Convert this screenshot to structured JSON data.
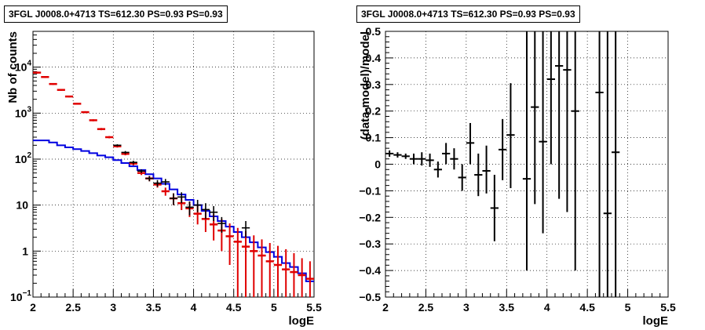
{
  "chart_data": [
    {
      "type": "line",
      "title": "3FGL J0008.0+4713 TS=612.30 PS=0.93 PS=0.93",
      "xlabel": "logE",
      "ylabel": "Nb of counts",
      "xlim": [
        2,
        5.5
      ],
      "ylim": [
        0.1,
        60000
      ],
      "yscale": "log",
      "grid": true,
      "xticks": [
        "2",
        "2.5",
        "3",
        "3.5",
        "4",
        "4.5",
        "5",
        "5.5"
      ],
      "yticks": [
        {
          "v": 0.1,
          "label": "10",
          "sup": "−1"
        },
        {
          "v": 1,
          "label": "1",
          "sup": ""
        },
        {
          "v": 10,
          "label": "10",
          "sup": ""
        },
        {
          "v": 100,
          "label": "10",
          "sup": "2"
        },
        {
          "v": 1000,
          "label": "10",
          "sup": "3"
        },
        {
          "v": 10000,
          "label": "10",
          "sup": "4"
        }
      ],
      "bin_width": 0.1,
      "series": [
        {
          "role": "model_total",
          "color": "#e00000",
          "x": [
            2.05,
            2.15,
            2.25,
            2.35,
            2.45,
            2.55,
            2.65,
            2.75,
            2.85,
            2.95,
            3.05,
            3.15,
            3.25,
            3.35,
            3.45,
            3.55,
            3.65,
            3.75,
            3.85,
            3.95,
            4.05,
            4.15,
            4.25,
            4.35,
            4.45,
            4.55,
            4.65,
            4.75,
            4.85,
            4.95,
            5.05,
            5.15,
            5.25,
            5.35,
            5.45
          ],
          "y": [
            7600,
            6100,
            4300,
            3200,
            2300,
            1600,
            1050,
            700,
            450,
            300,
            190,
            130,
            80,
            50,
            38,
            28,
            20,
            14,
            11,
            8.5,
            6.5,
            5,
            3.8,
            2.8,
            2.1,
            1.6,
            1.25,
            1.0,
            0.8,
            0.6,
            0.5,
            0.4,
            0.35,
            0.3,
            0.25
          ],
          "err_low": [
            7200,
            5800,
            4100,
            3050,
            2200,
            1530,
            1000,
            665,
            425,
            283,
            178,
            121,
            73,
            45,
            33,
            24,
            16,
            10,
            7.8,
            5.5,
            3.8,
            2.6,
            1.7,
            1.0,
            0.5,
            0,
            0,
            0,
            0,
            0,
            0,
            0,
            0,
            0,
            0
          ],
          "err_high": [
            8000,
            6400,
            4500,
            3350,
            2400,
            1670,
            1100,
            735,
            475,
            317,
            202,
            139,
            87,
            55,
            43,
            32,
            24,
            18,
            15,
            12,
            10,
            8,
            6.5,
            5,
            4,
            3.2,
            2.7,
            2.2,
            1.8,
            1.5,
            1.3,
            1.1,
            0.9,
            0.7,
            0.6
          ]
        },
        {
          "role": "model_component",
          "color": "#0000e0",
          "x": [
            2.05,
            2.15,
            2.25,
            2.35,
            2.45,
            2.55,
            2.65,
            2.75,
            2.85,
            2.95,
            3.05,
            3.15,
            3.25,
            3.35,
            3.45,
            3.55,
            3.65,
            3.75,
            3.85,
            3.95,
            4.05,
            4.15,
            4.25,
            4.35,
            4.45,
            4.55,
            4.65,
            4.75,
            4.85,
            4.95,
            5.05,
            5.15,
            5.25,
            5.35,
            5.45
          ],
          "y": [
            255,
            255,
            230,
            200,
            180,
            165,
            150,
            135,
            120,
            110,
            95,
            82,
            70,
            58,
            47,
            38,
            29,
            22,
            17,
            13,
            10,
            7.5,
            5.7,
            4.5,
            3.4,
            2.6,
            2.0,
            1.55,
            1.2,
            0.95,
            0.75,
            0.55,
            0.45,
            0.33,
            0.22
          ]
        },
        {
          "role": "data_points",
          "color": "#000000",
          "x": [
            3.05,
            3.15,
            3.25,
            3.35,
            3.45,
            3.55,
            3.65,
            3.75,
            3.85,
            3.95,
            4.05,
            4.15,
            4.25,
            4.35,
            4.65
          ],
          "y": [
            200,
            140,
            85,
            55,
            38,
            30,
            32,
            14,
            15,
            9,
            10,
            8,
            7,
            4,
            3.2
          ],
          "err_low": [
            190,
            130,
            78,
            50,
            33,
            25,
            27,
            10,
            11,
            6,
            7,
            5,
            4.5,
            2.5,
            2
          ],
          "err_high": [
            210,
            150,
            92,
            60,
            43,
            35,
            37,
            18,
            19,
            12,
            13,
            11,
            9.5,
            5.5,
            4.5
          ]
        }
      ]
    },
    {
      "type": "scatter",
      "title": "3FGL J0008.0+4713 TS=612.30 PS=0.93 PS=0.93",
      "xlabel": "logE",
      "ylabel": "(data-model)/model",
      "xlim": [
        2,
        5.5
      ],
      "ylim": [
        -0.5,
        0.5
      ],
      "grid": true,
      "xticks": [
        "2",
        "2.5",
        "3",
        "3.5",
        "4",
        "4.5",
        "5",
        "5.5"
      ],
      "yticks": [
        "−0.5",
        "−0.4",
        "−0.3",
        "−0.2",
        "−0.1",
        "0",
        "0.1",
        "0.2",
        "0.3",
        "0.4",
        "0.5"
      ],
      "bin_width": 0.1,
      "series": [
        {
          "role": "residuals",
          "color": "#000000",
          "x": [
            2.05,
            2.15,
            2.25,
            2.35,
            2.45,
            2.55,
            2.65,
            2.75,
            2.85,
            2.95,
            3.05,
            3.15,
            3.25,
            3.35,
            3.45,
            3.55,
            3.75,
            3.85,
            3.95,
            4.05,
            4.15,
            4.25,
            4.35,
            4.65,
            4.75,
            4.85
          ],
          "y": [
            0.04,
            0.035,
            0.03,
            0.02,
            0.02,
            0.015,
            -0.02,
            0.04,
            0.02,
            -0.05,
            0.08,
            -0.04,
            -0.025,
            -0.165,
            0.055,
            0.11,
            -0.055,
            0.215,
            0.085,
            0.32,
            0.37,
            0.355,
            0.2,
            0.27,
            -0.185,
            0.045
          ],
          "err_low": [
            0.028,
            0.025,
            0.02,
            0.0,
            -0.005,
            -0.01,
            -0.05,
            0.0,
            -0.02,
            -0.1,
            0.0,
            -0.12,
            -0.11,
            -0.29,
            -0.06,
            -0.09,
            -0.4,
            -0.15,
            -0.26,
            0.0,
            -0.13,
            -0.18,
            -0.4,
            -0.5,
            -0.5,
            -0.5
          ],
          "err_high": [
            0.052,
            0.045,
            0.04,
            0.04,
            0.045,
            0.04,
            0.01,
            0.08,
            0.06,
            0.0,
            0.155,
            0.04,
            0.07,
            -0.04,
            0.17,
            0.305,
            0.5,
            0.5,
            0.5,
            0.5,
            0.5,
            0.5,
            0.5,
            0.5,
            0.5,
            0.5
          ]
        }
      ]
    }
  ]
}
